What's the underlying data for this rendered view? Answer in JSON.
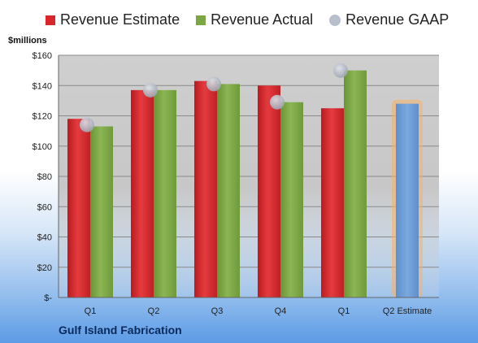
{
  "chart_data": {
    "type": "bar",
    "categories": [
      "Q1",
      "Q2",
      "Q3",
      "Q4",
      "Q1",
      "Q2 Estimate"
    ],
    "series": [
      {
        "name": "Revenue Estimate",
        "values": [
          118,
          137,
          143,
          140,
          125,
          null
        ]
      },
      {
        "name": "Revenue Actual",
        "values": [
          113,
          137,
          141,
          129,
          150,
          null
        ]
      },
      {
        "name": "Revenue GAAP",
        "values": [
          114,
          137,
          141,
          129,
          150,
          null
        ]
      }
    ],
    "projection": {
      "category": "Q2 Estimate",
      "value": 128
    },
    "ylabel": "$millions",
    "ylim": [
      0,
      160
    ],
    "yticks": [
      0,
      20,
      40,
      60,
      80,
      100,
      120,
      140,
      160
    ],
    "ytick_labels": [
      "$-",
      "$20",
      "$40",
      "$60",
      "$80",
      "$100",
      "$120",
      "$140",
      "$160"
    ],
    "legend_position": "top",
    "grid": true,
    "colors": {
      "estimate": "#d9262b",
      "actual": "#7ca544",
      "gaap": "#b8bfcc",
      "projection": "#6f9fd7",
      "projection_glow": "#f6b266"
    }
  },
  "legend": {
    "estimate": "Revenue Estimate",
    "actual": "Revenue Actual",
    "gaap": "Revenue GAAP"
  },
  "unit_label": "$millions",
  "company": "Gulf Island Fabrication"
}
